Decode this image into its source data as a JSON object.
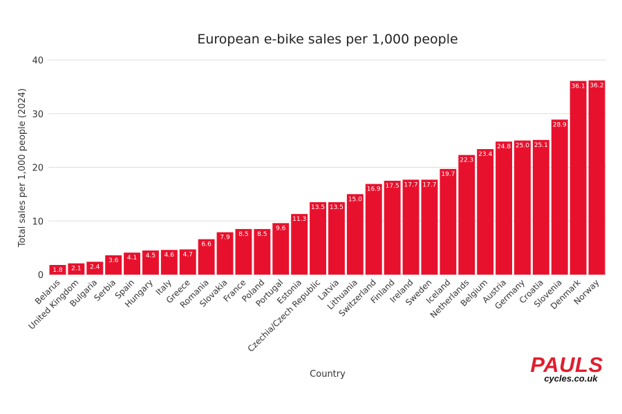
{
  "chart_data": {
    "type": "bar",
    "title": "European e-bike sales per 1,000 people",
    "xlabel": "Country",
    "ylabel": "Total sales per 1,000 people (2024)",
    "ylim": [
      0,
      40
    ],
    "yticks": [
      0,
      10,
      20,
      30,
      40
    ],
    "grid": true,
    "bar_color": "#e8112d",
    "categories": [
      "Belarus",
      "United Kingdom",
      "Bulgaria",
      "Serbia",
      "Spain",
      "Hungary",
      "Italy",
      "Greece",
      "Romania",
      "Slovakia",
      "France",
      "Poland",
      "Portugal",
      "Estonia",
      "Czechia/Czech Republic",
      "Latvia",
      "Lithuania",
      "Switzerland",
      "Finland",
      "Ireland",
      "Sweden",
      "Iceland",
      "Netherlands",
      "Belgium",
      "Austria",
      "Germany",
      "Croatia",
      "Slovenia",
      "Denmark",
      "Norway"
    ],
    "values": [
      1.8,
      2.1,
      2.4,
      3.6,
      4.1,
      4.5,
      4.6,
      4.7,
      6.6,
      7.9,
      8.5,
      8.5,
      9.6,
      11.3,
      13.5,
      13.5,
      15.0,
      16.9,
      17.5,
      17.7,
      17.7,
      19.7,
      22.3,
      23.4,
      24.8,
      25.0,
      25.1,
      28.9,
      36.1,
      36.2
    ],
    "data_labels": [
      "1.8",
      "2.1",
      "2.4",
      "3.6",
      "4.1",
      "4.5",
      "4.6",
      "4.7",
      "6.6",
      "7.9",
      "8.5",
      "8.5",
      "9.6",
      "11.3",
      "13.5",
      "13.5",
      "15.0",
      "16.9",
      "17.5",
      "17.7",
      "17.7",
      "19.7",
      "22.3",
      "23.4",
      "24.8",
      "25.0",
      "25.1",
      "28.9",
      "36.1",
      "36.2"
    ]
  },
  "logo": {
    "name": "PAULS",
    "domain": "cycles.co.uk"
  }
}
